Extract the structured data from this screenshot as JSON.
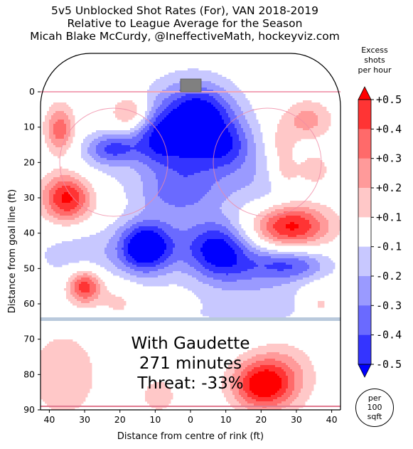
{
  "title_lines": [
    "5v5 Unblocked Shot Rates (For), VAN 2018-2019",
    "Relative to League Average for the Season",
    "Micah Blake McCurdy, @IneffectiveMath, hockeyviz.com"
  ],
  "chart_data": {
    "type": "heatmap",
    "xlabel": "Distance from centre of rink (ft)",
    "ylabel": "Distance from goal line (ft)",
    "xlim": [
      -42.5,
      42.5
    ],
    "ylim": [
      0,
      90
    ],
    "x_ticks": [
      40,
      30,
      20,
      10,
      0,
      10,
      20,
      30,
      40
    ],
    "y_ticks": [
      0,
      10,
      20,
      30,
      40,
      50,
      60,
      70,
      80,
      90
    ],
    "annotation": [
      "With Gaudette",
      "271 minutes",
      "Threat: -33%"
    ],
    "colorbar": {
      "title": [
        "Excess",
        "shots",
        "per hour"
      ],
      "tick_labels": [
        "+0.5",
        "+0.4",
        "+0.3",
        "+0.2",
        "+0.1",
        "-0.1",
        "-0.2",
        "-0.3",
        "-0.4",
        "-0.5"
      ],
      "unit": [
        "per",
        "100",
        "sqft"
      ],
      "colors": {
        "pos": [
          "#ffc8c8",
          "#ff9a9a",
          "#ff6a6a",
          "#ff3434",
          "#ff0000"
        ],
        "neg": [
          "#c8c8ff",
          "#9a9aff",
          "#6a6aff",
          "#3434ff",
          "#0000ff"
        ]
      }
    },
    "blobs": [
      {
        "x": -0.5,
        "y": 13,
        "sx": 10,
        "sy": 10,
        "a": -0.55
      },
      {
        "x": 3,
        "y": 5,
        "sx": 6,
        "sy": 5,
        "a": -0.25
      },
      {
        "x": -10,
        "y": 13,
        "sx": 4,
        "sy": 5,
        "a": -0.2
      },
      {
        "x": 11,
        "y": 15,
        "sx": 5,
        "sy": 5,
        "a": -0.22
      },
      {
        "x": -22,
        "y": 16,
        "sx": 5,
        "sy": 3,
        "a": -0.33
      },
      {
        "x": -28,
        "y": 20,
        "sx": 9,
        "sy": 6,
        "a": -0.1
      },
      {
        "x": -13,
        "y": 44,
        "sx": 5,
        "sy": 5,
        "a": -0.55
      },
      {
        "x": 8,
        "y": 45,
        "sx": 6,
        "sy": 6,
        "a": -0.45
      },
      {
        "x": -4,
        "y": 43,
        "sx": 9,
        "sy": 7,
        "a": -0.2
      },
      {
        "x": 28,
        "y": 49,
        "sx": 8,
        "sy": 3.5,
        "a": -0.4
      },
      {
        "x": 15,
        "y": 50,
        "sx": 7,
        "sy": 7,
        "a": -0.15
      },
      {
        "x": -4,
        "y": 29,
        "sx": 8,
        "sy": 4,
        "a": -0.2
      },
      {
        "x": 20,
        "y": 27,
        "sx": 8,
        "sy": 7,
        "a": -0.15
      },
      {
        "x": -30,
        "y": 46,
        "sx": 11,
        "sy": 6,
        "a": -0.17
      },
      {
        "x": 26,
        "y": 60,
        "sx": 7,
        "sy": 4,
        "a": -0.14
      },
      {
        "x": 0,
        "y": 64,
        "sx": 18,
        "sy": 5,
        "a": -0.09
      },
      {
        "x": -35,
        "y": 30,
        "sx": 5,
        "sy": 5,
        "a": 0.55
      },
      {
        "x": -37,
        "y": 11,
        "sx": 3,
        "sy": 5,
        "a": 0.38
      },
      {
        "x": -30,
        "y": 55,
        "sx": 3.5,
        "sy": 3.5,
        "a": 0.5
      },
      {
        "x": 28,
        "y": 38,
        "sx": 8,
        "sy": 4.5,
        "a": 0.55
      },
      {
        "x": -17,
        "y": 6,
        "sx": 4,
        "sy": 3.5,
        "a": 0.3
      },
      {
        "x": 33,
        "y": 8,
        "sx": 5,
        "sy": 4,
        "a": 0.25
      },
      {
        "x": 26,
        "y": 15,
        "sx": 2.5,
        "sy": 4,
        "a": 0.2
      },
      {
        "x": 27,
        "y": 23,
        "sx": 3,
        "sy": 3,
        "a": 0.2
      },
      {
        "x": 35,
        "y": 22,
        "sx": 3,
        "sy": 3,
        "a": 0.2
      },
      {
        "x": 20,
        "y": 83,
        "sx": 6,
        "sy": 5,
        "a": 0.5
      },
      {
        "x": 26,
        "y": 80,
        "sx": 7,
        "sy": 7,
        "a": 0.2
      },
      {
        "x": -36,
        "y": 80,
        "sx": 7,
        "sy": 9,
        "a": 0.2
      },
      {
        "x": -9,
        "y": 86,
        "sx": 3.5,
        "sy": 3.5,
        "a": 0.18
      },
      {
        "x": -20,
        "y": 60,
        "sx": 4,
        "sy": 4,
        "a": 0.16
      },
      {
        "x": 36,
        "y": 60,
        "sx": 4,
        "sy": 4,
        "a": 0.16
      }
    ]
  }
}
